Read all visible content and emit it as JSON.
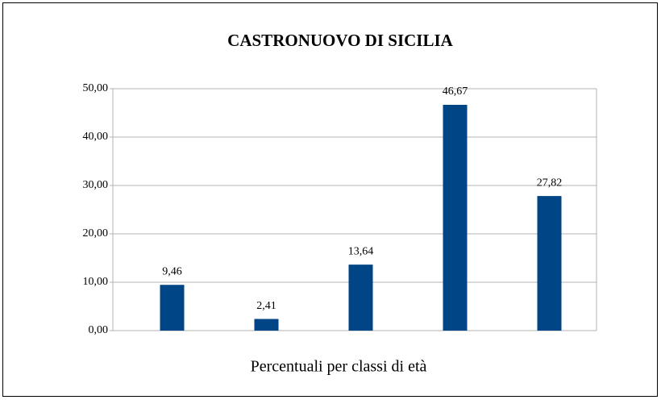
{
  "chart_data": {
    "type": "bar",
    "title": "CASTRONUOVO DI SICILIA",
    "x_label": "Percentuali per classi di età",
    "categories": [
      null,
      null,
      null,
      null,
      null
    ],
    "values": [
      9.46,
      2.41,
      13.64,
      46.67,
      27.82
    ],
    "value_labels": [
      "9,46",
      "2,41",
      "13,64",
      "46,67",
      "27,82"
    ],
    "color": "#004586",
    "ylim": [
      0,
      50
    ],
    "yticks": [
      {
        "value": 0,
        "label": "0,00"
      },
      {
        "value": 10,
        "label": "10,00"
      },
      {
        "value": 20,
        "label": "20,00"
      },
      {
        "value": 30,
        "label": "30,00"
      },
      {
        "value": 40,
        "label": "40,00"
      },
      {
        "value": 50,
        "label": "50,00"
      }
    ],
    "grid": true
  }
}
